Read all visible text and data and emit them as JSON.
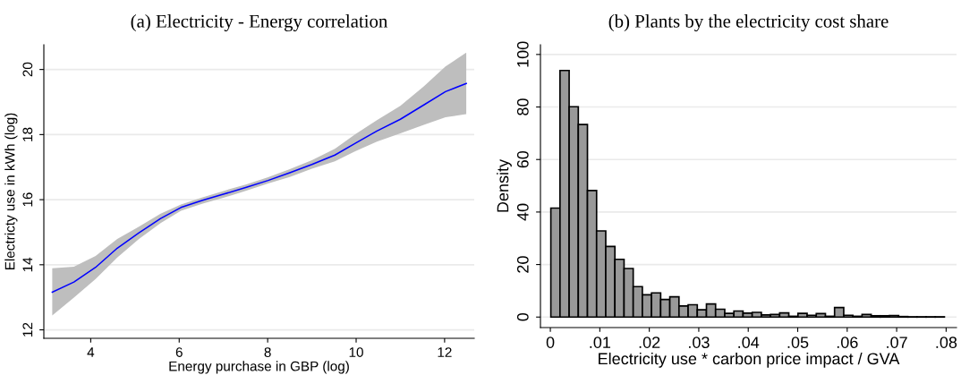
{
  "chart_data": [
    {
      "type": "line",
      "title": "(a) Electricity - Energy correlation",
      "xlabel": "Energy purchase in GBP (log)",
      "ylabel": "Electricty use in kWh (log)",
      "xlim": [
        2.94,
        12.67
      ],
      "ylim": [
        11.74,
        20.76
      ],
      "xticks": [
        4,
        6,
        8,
        10,
        12
      ],
      "yticks": [
        12,
        14,
        16,
        18,
        20
      ],
      "grid": "y",
      "legend": false,
      "series": [
        {
          "color": "#0000ff",
          "x": [
            3.13,
            3.62,
            4.11,
            4.6,
            5.09,
            5.58,
            6.04,
            6.53,
            7.03,
            7.52,
            8.01,
            8.5,
            9.0,
            9.52,
            9.98,
            10.47,
            11.0,
            11.53,
            12.02,
            12.49
          ],
          "values": [
            13.16,
            13.47,
            13.92,
            14.51,
            14.98,
            15.42,
            15.76,
            15.98,
            16.18,
            16.38,
            16.59,
            16.83,
            17.08,
            17.37,
            17.73,
            18.11,
            18.47,
            18.91,
            19.32,
            19.57
          ],
          "upper": [
            13.89,
            13.94,
            14.27,
            14.79,
            15.17,
            15.57,
            15.85,
            16.07,
            16.28,
            16.47,
            16.69,
            16.94,
            17.21,
            17.56,
            18.01,
            18.44,
            18.88,
            19.48,
            20.09,
            20.52
          ],
          "lower": [
            12.44,
            12.99,
            13.56,
            14.22,
            14.79,
            15.28,
            15.66,
            15.88,
            16.07,
            16.28,
            16.5,
            16.7,
            16.95,
            17.18,
            17.49,
            17.78,
            18.04,
            18.3,
            18.53,
            18.63
          ]
        }
      ]
    },
    {
      "type": "histogram",
      "title": "(b) Plants by the electricity cost share",
      "xlabel": "Electricity use * carbon price impact / GVA",
      "ylabel": "Density",
      "color": "#999999",
      "xlim": [
        -0.002,
        0.0821
      ],
      "ylim": [
        -4,
        103.7
      ],
      "xticks": [
        {
          "value": 0,
          "label": "0"
        },
        {
          "value": 0.01,
          "label": ".01"
        },
        {
          "value": 0.02,
          "label": ".02"
        },
        {
          "value": 0.03,
          "label": ".03"
        },
        {
          "value": 0.04,
          "label": ".04"
        },
        {
          "value": 0.05,
          "label": ".05"
        },
        {
          "value": 0.06,
          "label": ".06"
        },
        {
          "value": 0.07,
          "label": ".07"
        },
        {
          "value": 0.08,
          "label": ".08"
        }
      ],
      "yticks": [
        0,
        20,
        40,
        60,
        80,
        100
      ],
      "grid": "y",
      "legend": false,
      "bins": [
        0.0001,
        0.00195,
        0.0038,
        0.00565,
        0.0075,
        0.00935,
        0.0112,
        0.01305,
        0.0149,
        0.01675,
        0.0186,
        0.02045,
        0.0223,
        0.02415,
        0.026,
        0.02785,
        0.0297,
        0.03155,
        0.0334,
        0.03525,
        0.0371,
        0.03895,
        0.0408,
        0.04265,
        0.0445,
        0.04635,
        0.0482,
        0.05005,
        0.0519,
        0.05375,
        0.0556,
        0.05745,
        0.0593,
        0.06115,
        0.063,
        0.06485,
        0.0667,
        0.06855,
        0.0704,
        0.07225,
        0.0741,
        0.07595,
        0.0778,
        0.07965
      ],
      "values": [
        41.5,
        93.9,
        80.1,
        73.3,
        48.2,
        32.8,
        26.9,
        22.0,
        18.5,
        11.6,
        8.5,
        9.2,
        6.7,
        7.7,
        4.2,
        4.7,
        2.8,
        5.0,
        3.0,
        1.4,
        2.3,
        1.5,
        1.8,
        0.8,
        1.0,
        1.6,
        0.3,
        1.4,
        0.7,
        1.3,
        0.3,
        3.6,
        0.7,
        0.3,
        1.0,
        0.5,
        0.5,
        0.6,
        0.2,
        0.1,
        0.1,
        0.1,
        0.1
      ]
    }
  ]
}
